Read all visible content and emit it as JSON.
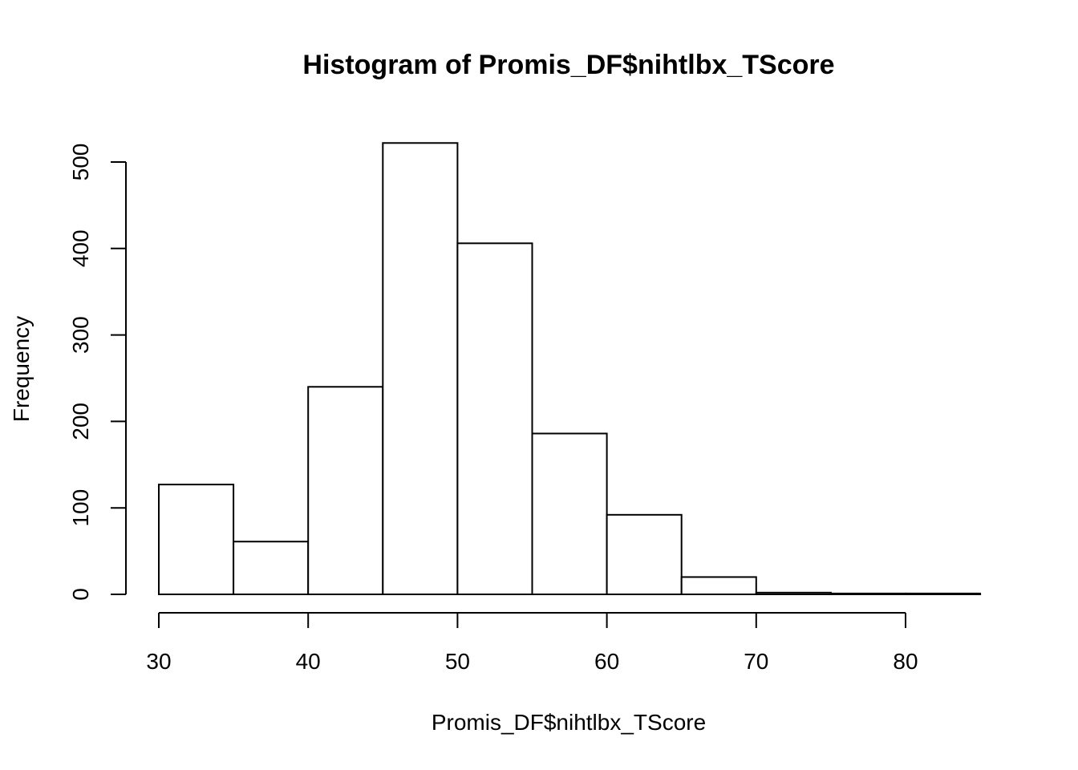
{
  "chart_data": {
    "type": "bar",
    "title": "Histogram of Promis_DF$nihtlbx_TScore",
    "xlabel": "Promis_DF$nihtlbx_TScore",
    "ylabel": "Frequency",
    "bins": [
      {
        "start": 30,
        "end": 35,
        "count": 127
      },
      {
        "start": 35,
        "end": 40,
        "count": 61
      },
      {
        "start": 40,
        "end": 45,
        "count": 240
      },
      {
        "start": 45,
        "end": 50,
        "count": 522
      },
      {
        "start": 50,
        "end": 55,
        "count": 406
      },
      {
        "start": 55,
        "end": 60,
        "count": 186
      },
      {
        "start": 60,
        "end": 65,
        "count": 92
      },
      {
        "start": 65,
        "end": 70,
        "count": 20
      },
      {
        "start": 70,
        "end": 75,
        "count": 2
      },
      {
        "start": 75,
        "end": 80,
        "count": 1
      },
      {
        "start": 80,
        "end": 85,
        "count": 1
      }
    ],
    "x_ticks": [
      30,
      40,
      50,
      60,
      70,
      80
    ],
    "y_ticks": [
      0,
      100,
      200,
      300,
      400,
      500
    ],
    "xlim": [
      30,
      85
    ],
    "ylim": [
      0,
      522
    ],
    "grid": false,
    "legend": "none"
  }
}
